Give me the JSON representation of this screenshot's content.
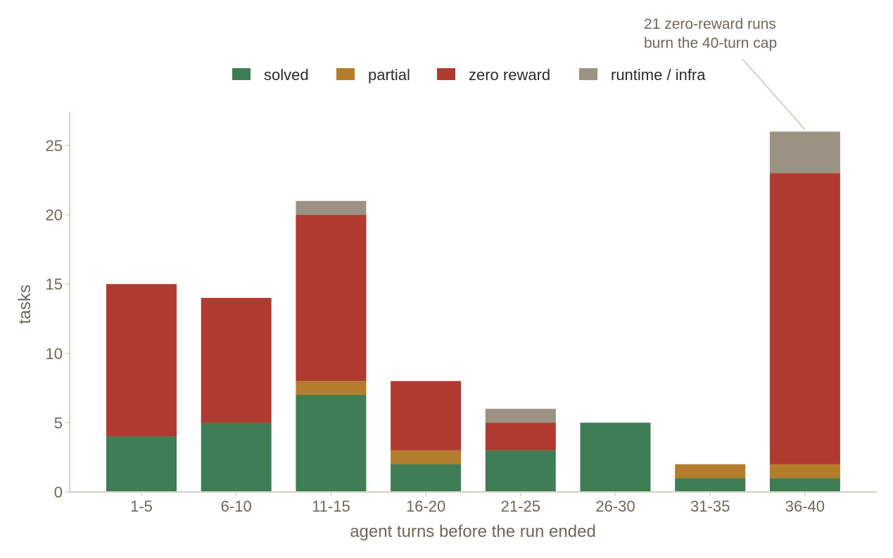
{
  "chart_data": {
    "type": "bar",
    "stacked": true,
    "categories": [
      "1-5",
      "6-10",
      "11-15",
      "16-20",
      "21-25",
      "26-30",
      "31-35",
      "36-40"
    ],
    "series": [
      {
        "name": "solved",
        "color": "#3e7d55",
        "values": [
          4,
          5,
          7,
          2,
          3,
          5,
          1,
          1
        ]
      },
      {
        "name": "partial",
        "color": "#b37d2c",
        "values": [
          0,
          0,
          1,
          1,
          0,
          0,
          1,
          1
        ]
      },
      {
        "name": "zero reward",
        "color": "#b03a30",
        "values": [
          11,
          9,
          12,
          5,
          2,
          0,
          0,
          21
        ]
      },
      {
        "name": "runtime / infra",
        "color": "#9c9283",
        "values": [
          0,
          0,
          1,
          0,
          1,
          0,
          0,
          3
        ]
      }
    ],
    "xlabel": "agent turns before the run ended",
    "ylabel": "tasks",
    "ylim": [
      0,
      27.4
    ],
    "yticks": [
      0,
      5,
      10,
      15,
      20,
      25
    ],
    "grid": false,
    "legend_position": "top-center",
    "annotation": {
      "lines": [
        "21 zero-reward runs",
        "burn the 40-turn cap"
      ],
      "target_category": "36-40"
    }
  }
}
